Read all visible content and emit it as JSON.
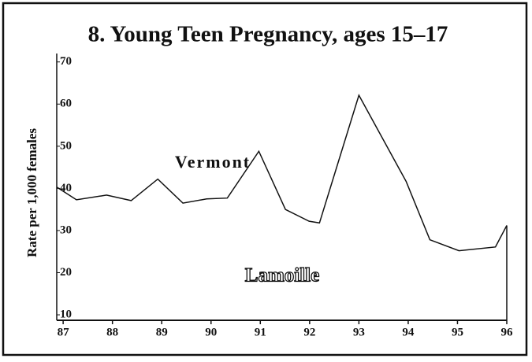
{
  "chart_data": {
    "type": "line",
    "title": "8. Young Teen Pregnancy, ages 15–17",
    "y_label": "Rate per 1,000 females",
    "annotations": [
      "Vermont",
      "Lamoille"
    ],
    "x": [
      86.87,
      87.27,
      87.88,
      88.38,
      88.92,
      89.43,
      89.91,
      90.33,
      90.97,
      91.51,
      91.99,
      92.2,
      93.0,
      93.96,
      94.44,
      95.03,
      95.77,
      96.0
    ],
    "series": [
      {
        "name": "Vermont",
        "color": "#111111",
        "values": [
          40.3,
          37.3,
          38.4,
          37.1,
          42.2,
          36.5,
          37.5,
          37.7,
          48.8,
          35.0,
          32.2,
          31.8,
          62.1,
          41.6,
          27.8,
          25.2,
          26.1,
          31.2
        ]
      }
    ],
    "xlim": [
      86.87,
      96
    ],
    "xticks": [
      87,
      88,
      89,
      90,
      91,
      92,
      93,
      94,
      95,
      96
    ],
    "ylim": [
      8.7,
      72
    ],
    "yticks": [
      10,
      20,
      30,
      40,
      50,
      60,
      70
    ]
  }
}
